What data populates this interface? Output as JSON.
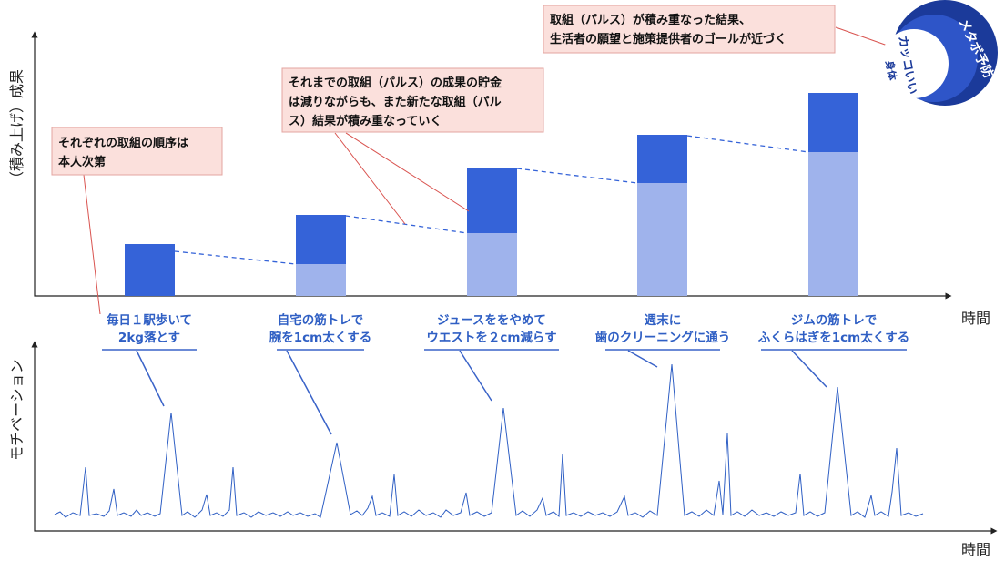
{
  "top_chart": {
    "y_label": "（積み上げ）成果",
    "x_label": "時間"
  },
  "bottom_chart": {
    "y_label": "モチベーション",
    "x_label": "時間"
  },
  "callouts": [
    {
      "lines": [
        "それぞれの取組の順序は",
        "本人次第"
      ]
    },
    {
      "lines": [
        "それまでの取組（パルス）の成果の貯金",
        "は減りながらも、また新たな取組（パル",
        "ス）結果が積み重なっていく"
      ]
    },
    {
      "lines": [
        "取組（パルス）が積み重なった結果、",
        "生活者の願望と施策提供者のゴールが近づく"
      ]
    }
  ],
  "badge": {
    "outer": "メタボ予防",
    "inner_1": "カッコいい",
    "inner_2": "身体"
  },
  "actions": [
    [
      "毎日１駅歩いて",
      "2kg落とす"
    ],
    [
      "自宅の筋トレで",
      "腕を1cm太くする"
    ],
    [
      "ジュースををやめて",
      "ウエストを２cm減らす"
    ],
    [
      "週末に",
      "歯のクリーニングに通う"
    ],
    [
      "ジムの筋トレで",
      "ふくらはぎを1cm太くする"
    ]
  ]
}
